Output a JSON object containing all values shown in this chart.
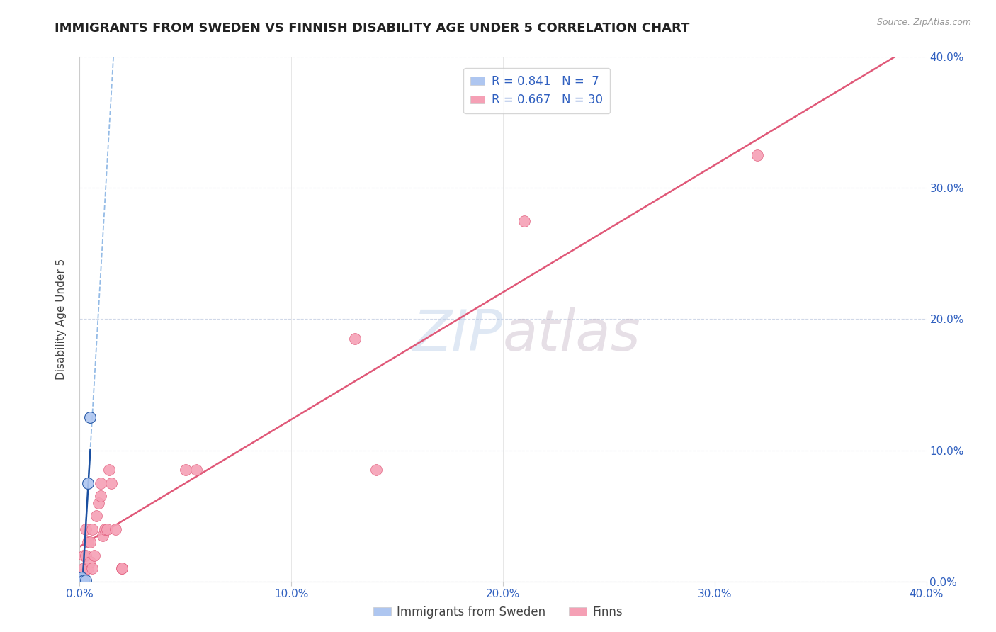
{
  "title": "IMMIGRANTS FROM SWEDEN VS FINNISH DISABILITY AGE UNDER 5 CORRELATION CHART",
  "source": "Source: ZipAtlas.com",
  "ylabel": "Disability Age Under 5",
  "xlim": [
    0.0,
    0.4
  ],
  "ylim": [
    0.0,
    0.4
  ],
  "watermark_text": "ZIPatlas",
  "sweden_points": [
    [
      0.001,
      0.001
    ],
    [
      0.001,
      0.002
    ],
    [
      0.001,
      0.003
    ],
    [
      0.002,
      0.001
    ],
    [
      0.003,
      0.001
    ],
    [
      0.004,
      0.075
    ],
    [
      0.005,
      0.125
    ]
  ],
  "finns_points": [
    [
      0.001,
      0.005
    ],
    [
      0.002,
      0.01
    ],
    [
      0.002,
      0.02
    ],
    [
      0.003,
      0.02
    ],
    [
      0.003,
      0.04
    ],
    [
      0.004,
      0.01
    ],
    [
      0.004,
      0.03
    ],
    [
      0.005,
      0.015
    ],
    [
      0.005,
      0.03
    ],
    [
      0.006,
      0.01
    ],
    [
      0.006,
      0.04
    ],
    [
      0.007,
      0.02
    ],
    [
      0.008,
      0.05
    ],
    [
      0.009,
      0.06
    ],
    [
      0.01,
      0.065
    ],
    [
      0.01,
      0.075
    ],
    [
      0.011,
      0.035
    ],
    [
      0.012,
      0.04
    ],
    [
      0.013,
      0.04
    ],
    [
      0.014,
      0.085
    ],
    [
      0.015,
      0.075
    ],
    [
      0.017,
      0.04
    ],
    [
      0.02,
      0.01
    ],
    [
      0.02,
      0.01
    ],
    [
      0.05,
      0.085
    ],
    [
      0.055,
      0.085
    ],
    [
      0.13,
      0.185
    ],
    [
      0.14,
      0.085
    ],
    [
      0.21,
      0.275
    ],
    [
      0.32,
      0.325
    ]
  ],
  "sweden_line_color": "#1a4fa0",
  "finns_line_color": "#e05878",
  "sweden_dot_color": "#aec6f0",
  "finns_dot_color": "#f5a0b5",
  "grid_color": "#d0d8e8",
  "background_color": "#ffffff",
  "title_fontsize": 13,
  "axis_label_fontsize": 11,
  "tick_fontsize": 11,
  "tick_color": "#3060c0",
  "source_color": "#999999"
}
